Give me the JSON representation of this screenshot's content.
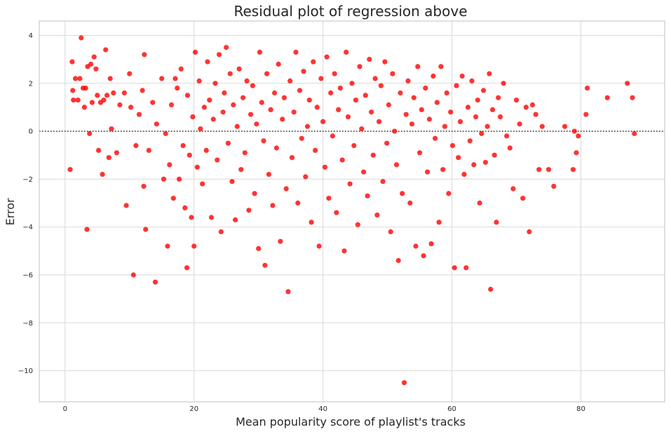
{
  "chart_data": {
    "type": "scatter",
    "title": "Residual plot of regression above",
    "xlabel": "Mean popularity score of playlist's tracks",
    "ylabel": "Error",
    "xlim": [
      -4,
      93
    ],
    "ylim": [
      -11.3,
      4.6
    ],
    "xticks": [
      0,
      20,
      40,
      60,
      80
    ],
    "yticks": [
      4,
      2,
      0,
      -2,
      -4,
      -6,
      -8,
      -10
    ],
    "grid": true,
    "reference_line": 0,
    "point_color": "#ff0000",
    "points": [
      [
        0.8,
        -1.6
      ],
      [
        1.1,
        2.9
      ],
      [
        1.2,
        1.7
      ],
      [
        1.3,
        1.3
      ],
      [
        1.6,
        2.2
      ],
      [
        2.0,
        1.3
      ],
      [
        2.3,
        2.2
      ],
      [
        2.5,
        3.9
      ],
      [
        2.8,
        1.8
      ],
      [
        3.0,
        1.0
      ],
      [
        3.2,
        1.8
      ],
      [
        3.4,
        -4.1
      ],
      [
        3.5,
        2.7
      ],
      [
        3.8,
        -0.1
      ],
      [
        4.0,
        2.8
      ],
      [
        4.2,
        1.2
      ],
      [
        4.5,
        3.1
      ],
      [
        4.8,
        2.6
      ],
      [
        5.0,
        1.5
      ],
      [
        5.2,
        -0.8
      ],
      [
        5.5,
        1.2
      ],
      [
        5.8,
        -1.8
      ],
      [
        6.0,
        1.3
      ],
      [
        6.3,
        3.4
      ],
      [
        6.5,
        1.5
      ],
      [
        6.8,
        -1.1
      ],
      [
        7.0,
        2.2
      ],
      [
        7.2,
        0.1
      ],
      [
        7.5,
        1.6
      ],
      [
        8.0,
        -0.9
      ],
      [
        8.5,
        1.1
      ],
      [
        9.2,
        1.6
      ],
      [
        9.5,
        -3.1
      ],
      [
        10.0,
        2.4
      ],
      [
        10.2,
        1.0
      ],
      [
        10.6,
        -6.0
      ],
      [
        11.0,
        -0.6
      ],
      [
        11.5,
        0.7
      ],
      [
        12.0,
        1.7
      ],
      [
        12.2,
        -2.3
      ],
      [
        12.3,
        3.2
      ],
      [
        12.5,
        -4.1
      ],
      [
        13.0,
        -0.8
      ],
      [
        13.6,
        1.2
      ],
      [
        14.0,
        -6.3
      ],
      [
        14.2,
        0.3
      ],
      [
        15.0,
        2.2
      ],
      [
        15.3,
        -2.0
      ],
      [
        15.6,
        -0.1
      ],
      [
        15.9,
        -4.8
      ],
      [
        16.2,
        -1.4
      ],
      [
        16.5,
        1.1
      ],
      [
        16.8,
        -2.8
      ],
      [
        17.1,
        2.2
      ],
      [
        17.4,
        1.8
      ],
      [
        17.7,
        -2.0
      ],
      [
        18.0,
        2.6
      ],
      [
        18.3,
        -0.6
      ],
      [
        18.6,
        -3.2
      ],
      [
        18.9,
        -5.7
      ],
      [
        19.0,
        1.5
      ],
      [
        19.3,
        -1.0
      ],
      [
        19.6,
        -3.6
      ],
      [
        19.8,
        0.6
      ],
      [
        20.0,
        -4.8
      ],
      [
        20.2,
        3.3
      ],
      [
        20.5,
        -1.5
      ],
      [
        20.8,
        2.1
      ],
      [
        21.0,
        0.1
      ],
      [
        21.3,
        -2.2
      ],
      [
        21.6,
        1.0
      ],
      [
        21.9,
        -0.8
      ],
      [
        22.1,
        2.9
      ],
      [
        22.4,
        1.3
      ],
      [
        22.7,
        -3.6
      ],
      [
        23.0,
        0.5
      ],
      [
        23.3,
        2.0
      ],
      [
        23.6,
        -1.2
      ],
      [
        23.9,
        3.2
      ],
      [
        24.2,
        -4.2
      ],
      [
        24.5,
        0.8
      ],
      [
        24.7,
        1.6
      ],
      [
        25.0,
        3.5
      ],
      [
        25.3,
        -0.5
      ],
      [
        25.6,
        2.4
      ],
      [
        25.9,
        -2.1
      ],
      [
        26.1,
        1.1
      ],
      [
        26.4,
        -3.7
      ],
      [
        26.7,
        0.2
      ],
      [
        27.0,
        2.6
      ],
      [
        27.3,
        -1.6
      ],
      [
        27.6,
        1.4
      ],
      [
        27.9,
        -0.9
      ],
      [
        28.2,
        2.1
      ],
      [
        28.5,
        -3.3
      ],
      [
        28.8,
        0.7
      ],
      [
        29.1,
        1.9
      ],
      [
        29.4,
        -2.6
      ],
      [
        29.7,
        0.3
      ],
      [
        30.0,
        -4.9
      ],
      [
        30.2,
        3.3
      ],
      [
        30.5,
        1.2
      ],
      [
        30.8,
        -0.4
      ],
      [
        31.0,
        -5.6
      ],
      [
        31.3,
        2.4
      ],
      [
        31.6,
        -1.8
      ],
      [
        31.9,
        0.9
      ],
      [
        32.2,
        -3.1
      ],
      [
        32.5,
        1.6
      ],
      [
        32.8,
        -0.7
      ],
      [
        33.1,
        2.8
      ],
      [
        33.4,
        -4.6
      ],
      [
        33.7,
        0.5
      ],
      [
        34.0,
        1.4
      ],
      [
        34.3,
        -2.4
      ],
      [
        34.6,
        -6.7
      ],
      [
        34.9,
        2.1
      ],
      [
        35.2,
        -1.1
      ],
      [
        35.5,
        0.8
      ],
      [
        35.8,
        3.3
      ],
      [
        36.1,
        -3.0
      ],
      [
        36.4,
        1.7
      ],
      [
        36.7,
        -0.3
      ],
      [
        37.0,
        2.5
      ],
      [
        37.3,
        -1.9
      ],
      [
        37.6,
        0.2
      ],
      [
        37.9,
        1.3
      ],
      [
        38.2,
        -3.8
      ],
      [
        38.5,
        2.9
      ],
      [
        38.8,
        -0.8
      ],
      [
        39.1,
        1.0
      ],
      [
        39.4,
        -4.8
      ],
      [
        39.7,
        2.2
      ],
      [
        40.0,
        0.4
      ],
      [
        40.3,
        -1.5
      ],
      [
        40.6,
        3.1
      ],
      [
        40.9,
        -2.8
      ],
      [
        41.2,
        1.6
      ],
      [
        41.5,
        -0.2
      ],
      [
        41.8,
        2.4
      ],
      [
        42.1,
        -3.4
      ],
      [
        42.4,
        0.9
      ],
      [
        42.7,
        1.8
      ],
      [
        43.0,
        -1.2
      ],
      [
        43.3,
        -5.0
      ],
      [
        43.6,
        3.3
      ],
      [
        43.9,
        0.6
      ],
      [
        44.2,
        -2.2
      ],
      [
        44.5,
        2.0
      ],
      [
        44.8,
        -0.6
      ],
      [
        45.1,
        1.3
      ],
      [
        45.4,
        -3.9
      ],
      [
        45.7,
        2.7
      ],
      [
        46.0,
        0.1
      ],
      [
        46.3,
        -1.7
      ],
      [
        46.6,
        1.5
      ],
      [
        46.9,
        -2.7
      ],
      [
        47.2,
        3.0
      ],
      [
        47.5,
        0.8
      ],
      [
        47.8,
        -1.0
      ],
      [
        48.1,
        2.2
      ],
      [
        48.4,
        -3.5
      ],
      [
        48.7,
        0.4
      ],
      [
        49.0,
        1.9
      ],
      [
        49.3,
        -2.1
      ],
      [
        49.6,
        2.9
      ],
      [
        49.9,
        -0.5
      ],
      [
        50.2,
        1.1
      ],
      [
        50.5,
        -4.2
      ],
      [
        50.8,
        2.4
      ],
      [
        51.1,
        0.0
      ],
      [
        51.4,
        -1.4
      ],
      [
        51.7,
        -5.4
      ],
      [
        52.0,
        1.6
      ],
      [
        52.3,
        -2.6
      ],
      [
        52.6,
        -10.5
      ],
      [
        52.9,
        0.7
      ],
      [
        53.2,
        2.1
      ],
      [
        53.5,
        -3.0
      ],
      [
        53.8,
        0.3
      ],
      [
        54.1,
        1.4
      ],
      [
        54.4,
        -4.8
      ],
      [
        54.7,
        2.7
      ],
      [
        55.0,
        -0.9
      ],
      [
        55.3,
        0.9
      ],
      [
        55.6,
        -5.2
      ],
      [
        55.9,
        1.8
      ],
      [
        56.2,
        -1.7
      ],
      [
        56.5,
        0.5
      ],
      [
        56.8,
        -4.7
      ],
      [
        57.1,
        2.3
      ],
      [
        57.4,
        -0.3
      ],
      [
        57.7,
        1.2
      ],
      [
        58.0,
        -3.8
      ],
      [
        58.3,
        2.7
      ],
      [
        58.6,
        -1.6
      ],
      [
        58.9,
        0.2
      ],
      [
        59.2,
        1.6
      ],
      [
        59.5,
        -2.6
      ],
      [
        59.8,
        0.8
      ],
      [
        60.1,
        -0.6
      ],
      [
        60.4,
        -5.7
      ],
      [
        60.7,
        1.9
      ],
      [
        61.0,
        -1.1
      ],
      [
        61.3,
        0.4
      ],
      [
        61.6,
        2.3
      ],
      [
        61.9,
        -1.8
      ],
      [
        62.2,
        -5.7
      ],
      [
        62.5,
        1.0
      ],
      [
        62.8,
        -0.4
      ],
      [
        63.1,
        2.1
      ],
      [
        63.4,
        -1.4
      ],
      [
        63.7,
        0.6
      ],
      [
        64.0,
        1.3
      ],
      [
        64.3,
        -3.0
      ],
      [
        64.6,
        -0.1
      ],
      [
        64.9,
        1.7
      ],
      [
        65.2,
        -1.3
      ],
      [
        65.5,
        0.2
      ],
      [
        65.8,
        2.4
      ],
      [
        66.0,
        -6.6
      ],
      [
        66.3,
        0.9
      ],
      [
        66.6,
        -1.0
      ],
      [
        66.9,
        -3.8
      ],
      [
        67.2,
        1.4
      ],
      [
        67.5,
        0.6
      ],
      [
        68.0,
        2.0
      ],
      [
        68.5,
        -0.2
      ],
      [
        69.0,
        -0.7
      ],
      [
        69.5,
        -2.4
      ],
      [
        70.0,
        1.3
      ],
      [
        70.5,
        0.3
      ],
      [
        71.0,
        -2.8
      ],
      [
        71.5,
        1.0
      ],
      [
        72.0,
        -4.2
      ],
      [
        72.5,
        1.1
      ],
      [
        73.0,
        0.7
      ],
      [
        73.5,
        -1.6
      ],
      [
        74.0,
        0.2
      ],
      [
        75.0,
        -1.6
      ],
      [
        75.8,
        -2.3
      ],
      [
        77.5,
        0.2
      ],
      [
        78.8,
        -1.6
      ],
      [
        79.0,
        0.0
      ],
      [
        79.3,
        -0.9
      ],
      [
        79.6,
        -0.2
      ],
      [
        80.8,
        0.7
      ],
      [
        81.0,
        1.8
      ],
      [
        84.1,
        1.4
      ],
      [
        87.2,
        2.0
      ],
      [
        88.0,
        1.4
      ],
      [
        88.3,
        -0.1
      ]
    ]
  }
}
